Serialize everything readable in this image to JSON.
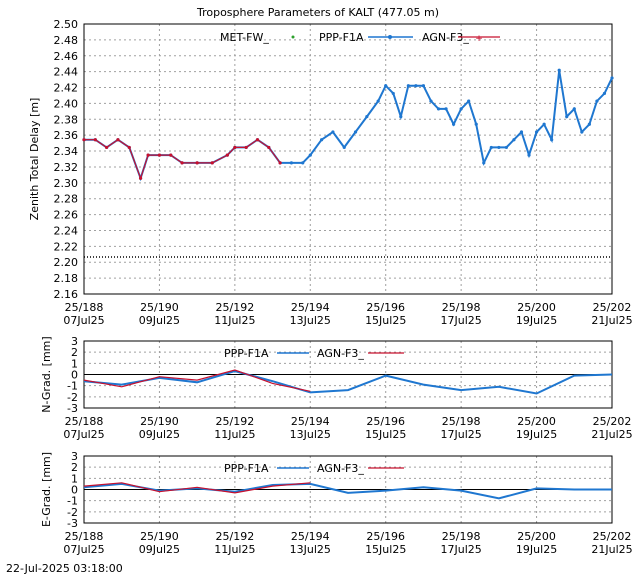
{
  "title": "Troposphere Parameters of KALT (477.05 m)",
  "timestamp": "22-Jul-2025 03:18:00",
  "colors": {
    "met": "#2ca02c",
    "ppp": "#1f77d0",
    "agn": "#c8102e",
    "grid": "#a0a0a0"
  },
  "chart_data": [
    {
      "type": "line",
      "ylabel": "Zenith Total Delay [m]",
      "ylim": [
        2.15,
        2.5
      ],
      "yticks": [
        "2.16",
        "2.18",
        "2.20",
        "2.22",
        "2.24",
        "2.26",
        "2.28",
        "2.30",
        "2.32",
        "2.34",
        "2.36",
        "2.38",
        "2.40",
        "2.42",
        "2.44",
        "2.46",
        "2.48",
        "2.50"
      ],
      "xlim": [
        188,
        202
      ],
      "xticks": [
        {
          "doy": "25/188",
          "date": "07Jul25"
        },
        {
          "doy": "25/190",
          "date": "09Jul25"
        },
        {
          "doy": "25/192",
          "date": "11Jul25"
        },
        {
          "doy": "25/194",
          "date": "13Jul25"
        },
        {
          "doy": "25/196",
          "date": "15Jul25"
        },
        {
          "doy": "25/198",
          "date": "17Jul25"
        },
        {
          "doy": "25/200",
          "date": "19Jul25"
        },
        {
          "doy": "25/202",
          "date": "21Jul25"
        }
      ],
      "series": [
        {
          "name": "MET-FW_",
          "style": "points",
          "x": [
            188.0,
            202.0
          ],
          "y": [
            2.198,
            2.198
          ]
        },
        {
          "name": "PPP-F1A",
          "style": "line-points",
          "x": [
            188.0,
            188.3,
            188.6,
            188.9,
            189.2,
            189.5,
            189.7,
            190.0,
            190.3,
            190.6,
            191.0,
            191.4,
            191.8,
            192.0,
            192.3,
            192.6,
            192.9,
            193.2,
            193.5,
            193.8,
            194.0,
            194.3,
            194.6,
            194.9,
            195.2,
            195.5,
            195.8,
            196.0,
            196.2,
            196.4,
            196.6,
            196.8,
            197.0,
            197.2,
            197.4,
            197.6,
            197.8,
            198.0,
            198.2,
            198.4,
            198.6,
            198.8,
            199.0,
            199.2,
            199.4,
            199.6,
            199.8,
            200.0,
            200.2,
            200.4,
            200.6,
            200.8,
            201.0,
            201.2,
            201.4,
            201.6,
            201.8,
            202.0
          ],
          "y": [
            2.35,
            2.35,
            2.34,
            2.35,
            2.34,
            2.3,
            2.33,
            2.33,
            2.33,
            2.32,
            2.32,
            2.32,
            2.33,
            2.34,
            2.34,
            2.35,
            2.34,
            2.32,
            2.32,
            2.32,
            2.33,
            2.35,
            2.36,
            2.34,
            2.36,
            2.38,
            2.4,
            2.42,
            2.41,
            2.38,
            2.42,
            2.42,
            2.42,
            2.4,
            2.39,
            2.39,
            2.37,
            2.39,
            2.4,
            2.37,
            2.32,
            2.34,
            2.34,
            2.34,
            2.35,
            2.36,
            2.33,
            2.36,
            2.37,
            2.35,
            2.44,
            2.38,
            2.39,
            2.36,
            2.37,
            2.4,
            2.41,
            2.43
          ]
        },
        {
          "name": "AGN-F3_",
          "style": "line-points",
          "x": [
            188.0,
            188.3,
            188.6,
            188.9,
            189.2,
            189.5,
            189.7,
            190.0,
            190.3,
            190.6,
            191.0,
            191.4,
            191.8,
            192.0,
            192.3,
            192.6,
            192.9,
            193.2
          ],
          "y": [
            2.35,
            2.35,
            2.34,
            2.35,
            2.34,
            2.3,
            2.33,
            2.33,
            2.33,
            2.32,
            2.32,
            2.32,
            2.33,
            2.34,
            2.34,
            2.35,
            2.34,
            2.32
          ]
        }
      ]
    },
    {
      "type": "line",
      "ylabel": "N-Grad. [mm]",
      "ylim": [
        -3,
        3
      ],
      "yticks": [
        "-3",
        "-2",
        "-1",
        "0",
        "1",
        "2",
        "3"
      ],
      "series": [
        {
          "name": "PPP-F1A",
          "x": [
            188,
            189,
            190,
            191,
            192,
            193,
            194,
            195,
            196,
            197,
            198,
            199,
            200,
            201,
            202
          ],
          "y": [
            -0.6,
            -0.9,
            -0.3,
            -0.7,
            0.3,
            -0.6,
            -1.6,
            -1.4,
            -0.1,
            -0.9,
            -1.4,
            -1.1,
            -1.7,
            -0.1,
            0.0
          ]
        },
        {
          "name": "AGN-F3_",
          "x": [
            188,
            189,
            190,
            191,
            192,
            193,
            194
          ],
          "y": [
            -0.5,
            -1.1,
            -0.2,
            -0.5,
            0.4,
            -0.8,
            -1.5
          ]
        }
      ]
    },
    {
      "type": "line",
      "ylabel": "E-Grad. [mm]",
      "ylim": [
        -3,
        3
      ],
      "yticks": [
        "-3",
        "-2",
        "-1",
        "0",
        "1",
        "2",
        "3"
      ],
      "series": [
        {
          "name": "PPP-F1A",
          "x": [
            188,
            189,
            190,
            191,
            192,
            193,
            194,
            195,
            196,
            197,
            198,
            199,
            200,
            201,
            202
          ],
          "y": [
            0.2,
            0.5,
            -0.1,
            0.1,
            -0.2,
            0.4,
            0.5,
            -0.3,
            -0.1,
            0.2,
            -0.1,
            -0.8,
            0.1,
            0.0,
            0.0
          ]
        },
        {
          "name": "AGN-F3_",
          "x": [
            188,
            189,
            190,
            191,
            192,
            193,
            194
          ],
          "y": [
            0.3,
            0.6,
            -0.2,
            0.2,
            -0.3,
            0.3,
            0.6
          ]
        }
      ]
    }
  ]
}
